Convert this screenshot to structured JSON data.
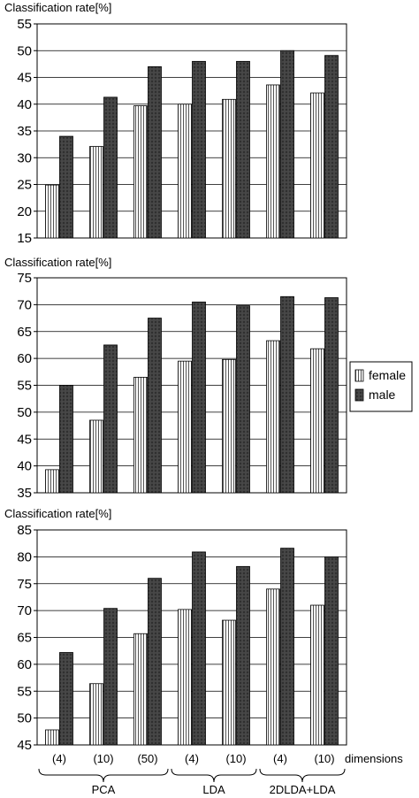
{
  "chart_data": [
    {
      "type": "bar",
      "ylabel": "Classification rate[%]",
      "ylim": [
        15,
        55
      ],
      "ytick_step": 5,
      "categories": [
        "(4)",
        "(10)",
        "(50)",
        "(4)",
        "(10)",
        "(4)",
        "(10)"
      ],
      "series": [
        {
          "name": "female",
          "values": [
            24.9,
            32.1,
            39.7,
            40.0,
            40.9,
            43.6,
            42.1
          ]
        },
        {
          "name": "male",
          "values": [
            34.0,
            41.3,
            47.0,
            48.0,
            48.0,
            50.0,
            49.1
          ]
        }
      ],
      "grid": "horizontal"
    },
    {
      "type": "bar",
      "ylabel": "Classification rate[%]",
      "ylim": [
        35,
        75
      ],
      "ytick_step": 5,
      "categories": [
        "(4)",
        "(10)",
        "(50)",
        "(4)",
        "(10)",
        "(4)",
        "(10)"
      ],
      "series": [
        {
          "name": "female",
          "values": [
            39.3,
            48.5,
            56.5,
            59.5,
            59.8,
            63.3,
            61.8
          ]
        },
        {
          "name": "male",
          "values": [
            55.0,
            62.5,
            67.5,
            70.5,
            69.8,
            71.5,
            71.3
          ]
        }
      ],
      "grid": "horizontal"
    },
    {
      "type": "bar",
      "ylabel": "Classification rate[%]",
      "ylim": [
        45,
        85
      ],
      "ytick_step": 5,
      "categories": [
        "(4)",
        "(10)",
        "(50)",
        "(4)",
        "(10)",
        "(4)",
        "(10)"
      ],
      "series": [
        {
          "name": "female",
          "values": [
            47.8,
            56.4,
            65.7,
            70.2,
            68.2,
            74.0,
            71.0
          ]
        },
        {
          "name": "male",
          "values": [
            62.2,
            70.4,
            76.0,
            80.9,
            78.2,
            81.6,
            80.0
          ]
        }
      ],
      "grid": "horizontal"
    }
  ],
  "x_axis": {
    "label": "dimensions",
    "groups": [
      {
        "label": "PCA",
        "count": 3
      },
      {
        "label": "LDA",
        "count": 2
      },
      {
        "label": "2DLDA+LDA",
        "count": 2
      }
    ]
  },
  "legend": {
    "position": "right-middle",
    "items": [
      {
        "label": "female",
        "pattern": "vertical-stripes"
      },
      {
        "label": "male",
        "pattern": "dark-crosshatch"
      }
    ]
  },
  "colors": {
    "female_fill": "#ffffff",
    "female_stripe": "#555555",
    "male_fill": "#4a4a4a",
    "axis": "#000000",
    "grid": "#000000"
  }
}
